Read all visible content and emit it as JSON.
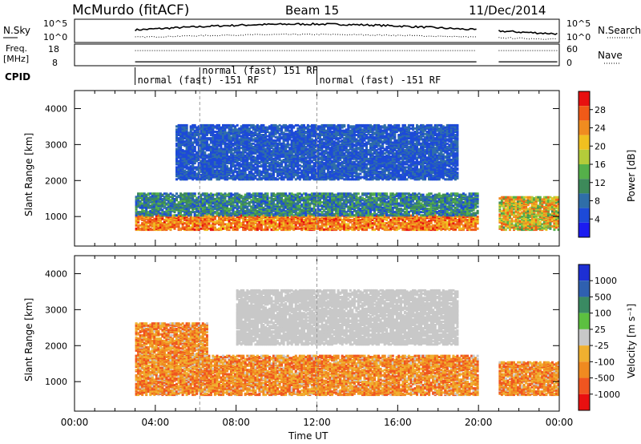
{
  "header": {
    "station": "McMurdo (fitACF)",
    "beam": "Beam 15",
    "date": "11/Dec/2014"
  },
  "summary": {
    "nsky_label": "N.Sky",
    "nsky_ticks": [
      "10^5",
      "10^0"
    ],
    "nsearch_label": "N.Search",
    "freq_label_1": "Freq.",
    "freq_label_2": "[MHz]",
    "freq_ticks": [
      "18",
      "8"
    ],
    "nave_ticks": [
      "60",
      "0"
    ],
    "nave_label": "Nave",
    "cpid_label": "CPID",
    "cpid_segments": [
      {
        "label": "normal (fast) -151 RF",
        "start_h": 3.0,
        "row": 1
      },
      {
        "label": "normal (fast) 151 RF",
        "start_h": 6.2,
        "row": 0
      },
      {
        "label": "normal (fast) -151 RF",
        "start_h": 12.0,
        "row": 1
      }
    ],
    "data_gap_h": [
      19.95,
      21.0
    ]
  },
  "axes": {
    "ylabel": "Slant Range [km]",
    "xlabel": "Time UT",
    "x_ticks": [
      "00:00",
      "04:00",
      "08:00",
      "12:00",
      "16:00",
      "20:00",
      "00:00"
    ],
    "y_ticks": [
      "1000",
      "2000",
      "3000",
      "4000"
    ]
  },
  "colors": {
    "power": [
      "#1c1cf0",
      "#1d4ad8",
      "#2f6ea8",
      "#3d8a5a",
      "#55b04a",
      "#b4cc3a",
      "#f0c020",
      "#f08c20",
      "#f05a18",
      "#e81010"
    ],
    "velocity": [
      "#1d2fd4",
      "#2f60b0",
      "#3a8a62",
      "#5cc040",
      "#c8c8c8",
      "#f0b030",
      "#f08a20",
      "#f05520",
      "#e81010"
    ]
  },
  "chart_data": [
    {
      "type": "heatmap",
      "title": "Power",
      "colorbar_label": "Power [dB]",
      "colorbar_ticks": [
        "4",
        "8",
        "12",
        "16",
        "20",
        "24",
        "28"
      ],
      "xlim": [
        0,
        24
      ],
      "ylim": [
        180,
        4500
      ],
      "data_coverage_h": [
        [
          3.0,
          19.95
        ],
        [
          21.0,
          24.0
        ]
      ],
      "bands": [
        {
          "range_km": [
            600,
            1000
          ],
          "level_db": [
            20,
            30
          ],
          "hours": [
            3.0,
            19.95
          ]
        },
        {
          "range_km": [
            1000,
            1600
          ],
          "level_db": [
            4,
            16
          ],
          "hours": [
            3.0,
            19.95
          ]
        },
        {
          "range_km": [
            2000,
            3500
          ],
          "level_db": [
            4,
            8
          ],
          "hours": [
            5.0,
            19.0
          ]
        },
        {
          "range_km": [
            600,
            1500
          ],
          "level_db": [
            12,
            28
          ],
          "hours": [
            21.0,
            24.0
          ]
        }
      ]
    },
    {
      "type": "heatmap",
      "title": "Velocity",
      "colorbar_label": "Velocity [m s⁻¹]",
      "colorbar_ticks": [
        "1000",
        "500",
        "100",
        "25",
        "-25",
        "-100",
        "-500",
        "-1000"
      ],
      "xlim": [
        0,
        24
      ],
      "ylim": [
        180,
        4500
      ],
      "data_coverage_h": [
        [
          3.0,
          19.95
        ],
        [
          21.0,
          24.0
        ]
      ],
      "bands": [
        {
          "range_km": [
            600,
            1700
          ],
          "velocity_ms": [
            -500,
            -100
          ],
          "hours": [
            3.0,
            19.95
          ]
        },
        {
          "range_km": [
            2000,
            3500
          ],
          "velocity_ms": [
            -25,
            25
          ],
          "hours": [
            8.0,
            19.0
          ]
        },
        {
          "range_km": [
            1500,
            2600
          ],
          "velocity_ms": [
            -500,
            -100
          ],
          "hours": [
            3.0,
            6.5
          ]
        },
        {
          "range_km": [
            600,
            1500
          ],
          "velocity_ms": [
            -500,
            -25
          ],
          "hours": [
            21.0,
            24.0
          ]
        }
      ]
    }
  ]
}
